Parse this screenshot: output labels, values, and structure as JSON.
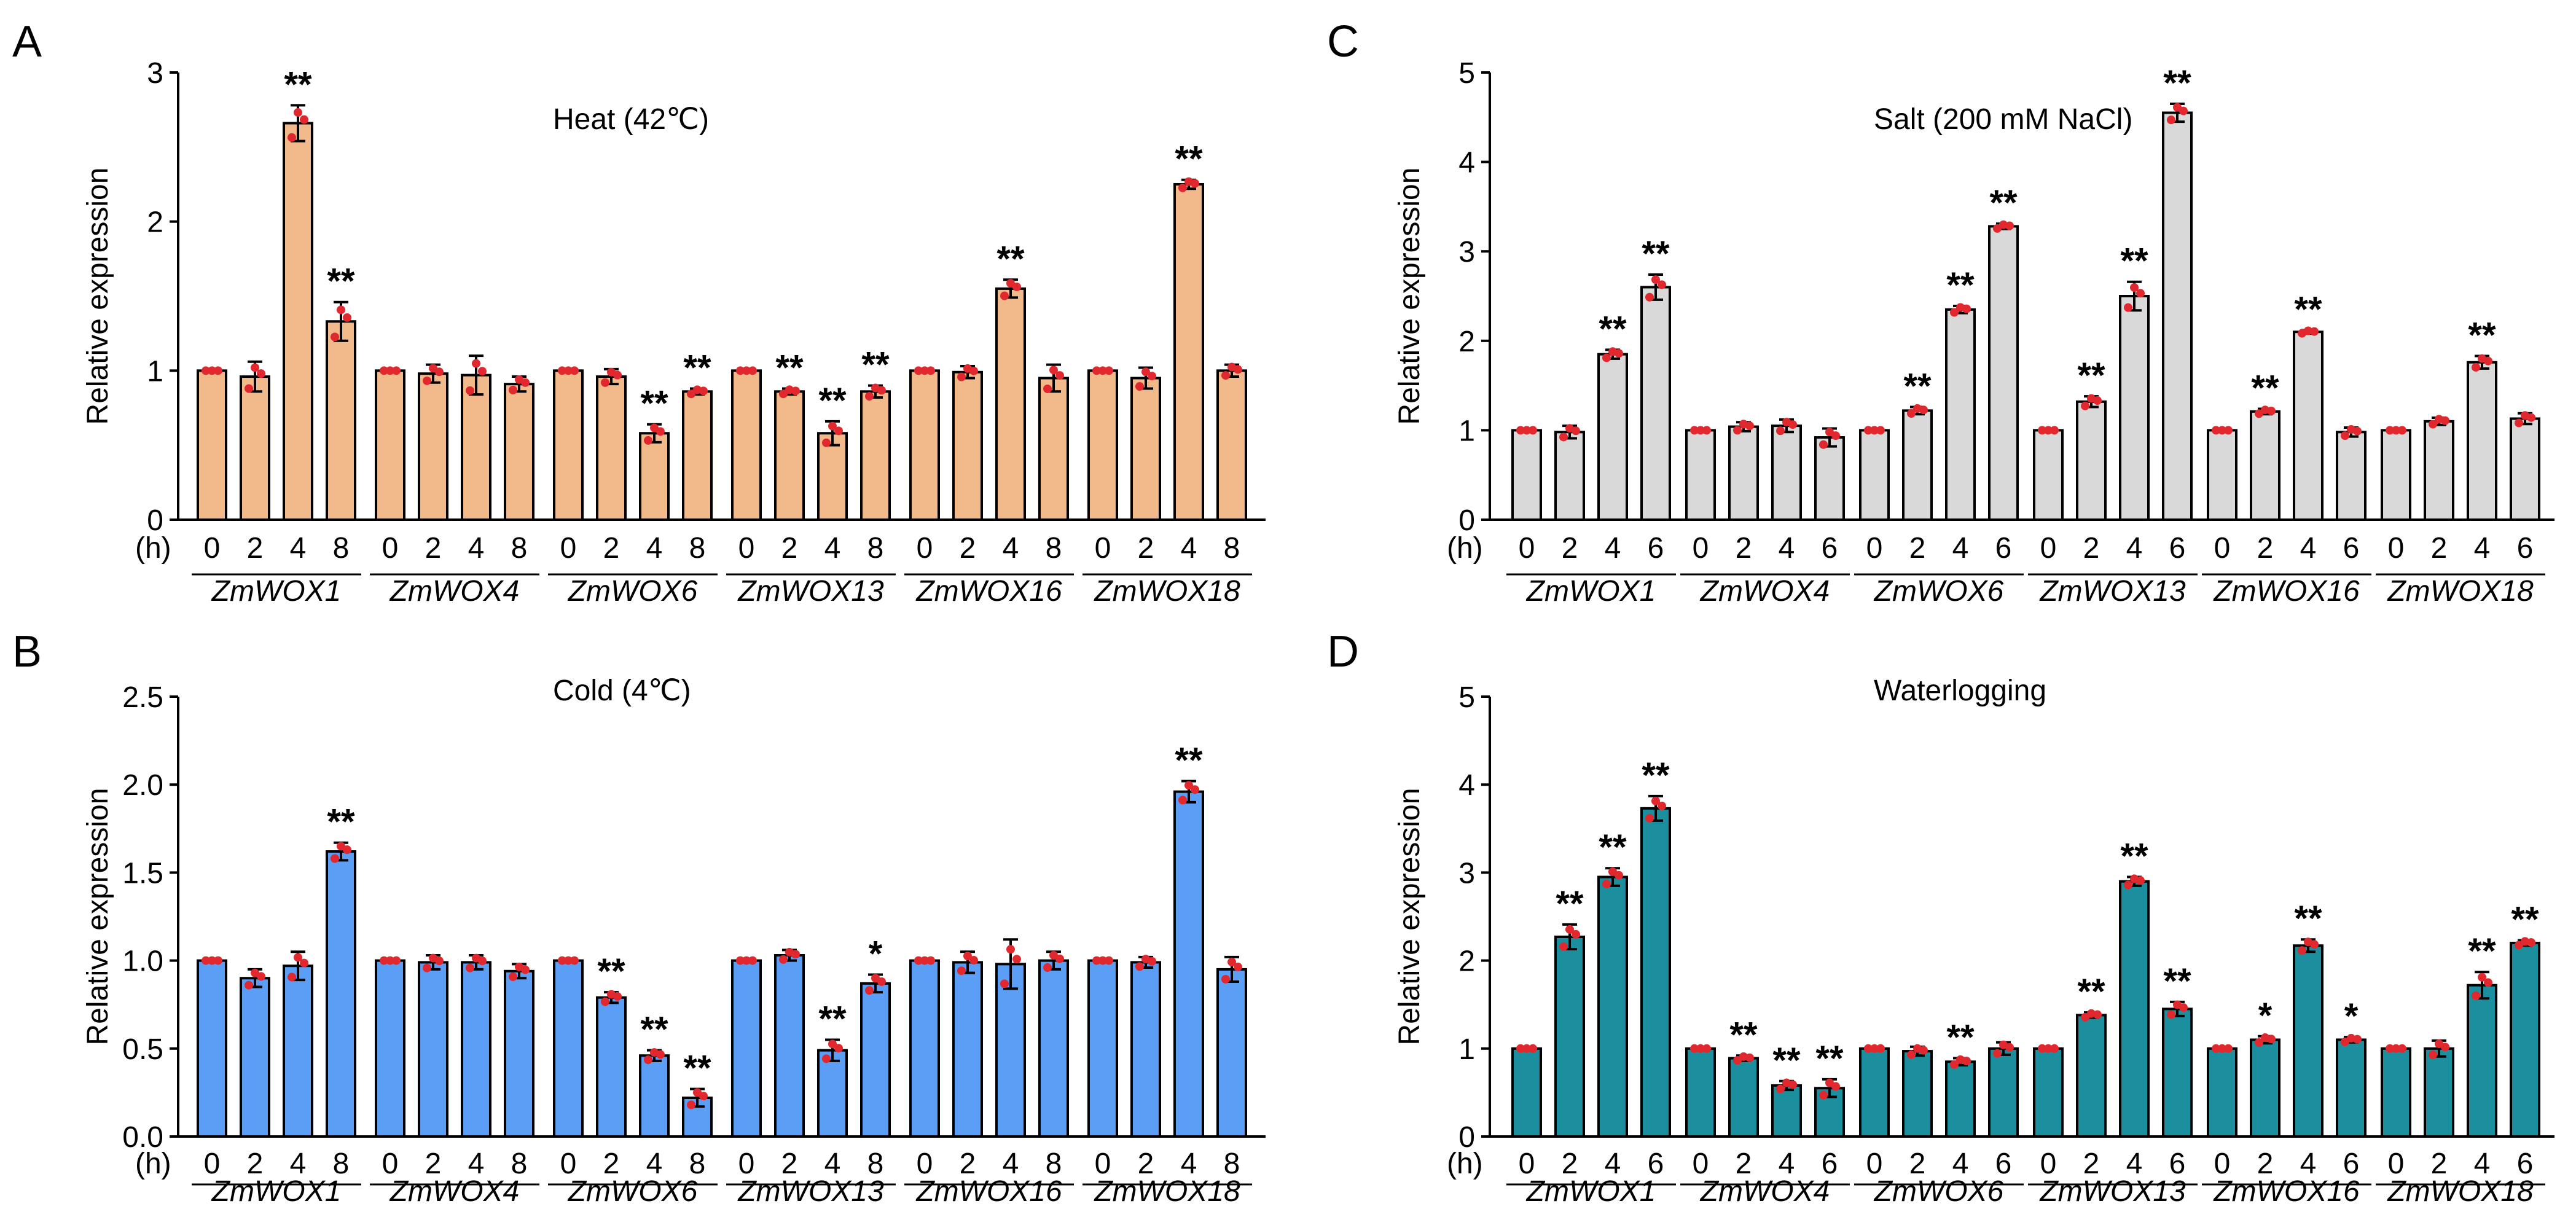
{
  "chart_data": [
    {
      "panel": "A",
      "type": "bar",
      "title": "Heat (42℃)",
      "ylabel": "Relative expression",
      "xunit": "(h)",
      "ylim": [
        0,
        3
      ],
      "yticks": [
        "0",
        "1",
        "2",
        "3"
      ],
      "time_labels": [
        "0",
        "2",
        "4",
        "8"
      ],
      "genes": [
        "ZmWOX1",
        "ZmWOX4",
        "ZmWOX6",
        "ZmWOX13",
        "ZmWOX16",
        "ZmWOX18"
      ],
      "color": "#f2b98a",
      "values": [
        1.0,
        0.96,
        2.66,
        1.33,
        1.0,
        0.98,
        0.97,
        0.91,
        1.0,
        0.96,
        0.58,
        0.86,
        1.0,
        0.86,
        0.58,
        0.86,
        1.0,
        0.99,
        1.55,
        0.95,
        1.0,
        0.95,
        2.25,
        1.0
      ],
      "errors": [
        0.0,
        0.1,
        0.12,
        0.13,
        0.0,
        0.06,
        0.13,
        0.05,
        0.0,
        0.05,
        0.06,
        0.02,
        0.0,
        0.02,
        0.08,
        0.04,
        0.0,
        0.04,
        0.06,
        0.09,
        0.0,
        0.07,
        0.03,
        0.04
      ],
      "sig": [
        "",
        "",
        "**",
        "**",
        "",
        "",
        "",
        "",
        "",
        "",
        "**",
        "**",
        "",
        "**",
        "**",
        "**",
        "",
        "",
        "**",
        "",
        "",
        "",
        "**",
        ""
      ]
    },
    {
      "panel": "B",
      "type": "bar",
      "title": "Cold (4℃)",
      "ylabel": "Relative expression",
      "xunit": "(h)",
      "ylim": [
        0,
        2.5
      ],
      "yticks": [
        "0.0",
        "0.5",
        "1.0",
        "1.5",
        "2.0",
        "2.5"
      ],
      "time_labels": [
        "0",
        "2",
        "4",
        "8"
      ],
      "genes": [
        "ZmWOX1",
        "ZmWOX4",
        "ZmWOX6",
        "ZmWOX13",
        "ZmWOX16",
        "ZmWOX18"
      ],
      "color": "#5b9ef5",
      "values": [
        1.0,
        0.9,
        0.97,
        1.62,
        1.0,
        0.99,
        0.99,
        0.94,
        1.0,
        0.79,
        0.46,
        0.22,
        1.0,
        1.03,
        0.49,
        0.87,
        1.0,
        0.99,
        0.98,
        1.0,
        1.0,
        0.99,
        1.96,
        0.95
      ],
      "errors": [
        0.0,
        0.05,
        0.08,
        0.05,
        0.0,
        0.04,
        0.04,
        0.04,
        0.0,
        0.03,
        0.03,
        0.05,
        0.0,
        0.03,
        0.06,
        0.05,
        0.0,
        0.06,
        0.14,
        0.05,
        0.0,
        0.03,
        0.06,
        0.07
      ],
      "sig": [
        "",
        "",
        "",
        "**",
        "",
        "",
        "",
        "",
        "",
        "**",
        "**",
        "**",
        "",
        "",
        "**",
        "*",
        "",
        "",
        "",
        "",
        "",
        "",
        "**",
        ""
      ]
    },
    {
      "panel": "C",
      "type": "bar",
      "title": "Salt (200 mM NaCl)",
      "ylabel": "Relative expression",
      "xunit": "(h)",
      "ylim": [
        0,
        5
      ],
      "yticks": [
        "0",
        "1",
        "2",
        "3",
        "4",
        "5"
      ],
      "time_labels": [
        "0",
        "2",
        "4",
        "6"
      ],
      "genes": [
        "ZmWOX1",
        "ZmWOX4",
        "ZmWOX6",
        "ZmWOX13",
        "ZmWOX16",
        "ZmWOX18"
      ],
      "color": "#d9d9d9",
      "values": [
        1.0,
        0.98,
        1.85,
        2.6,
        1.0,
        1.04,
        1.05,
        0.92,
        1.0,
        1.22,
        2.35,
        3.28,
        1.0,
        1.32,
        2.5,
        4.55,
        1.0,
        1.21,
        2.1,
        0.98,
        1.0,
        1.1,
        1.76,
        1.13
      ],
      "errors": [
        0.0,
        0.07,
        0.05,
        0.14,
        0.0,
        0.05,
        0.07,
        0.1,
        0.0,
        0.04,
        0.04,
        0.03,
        0.0,
        0.06,
        0.16,
        0.1,
        0.0,
        0.03,
        0.02,
        0.05,
        0.0,
        0.04,
        0.07,
        0.06
      ],
      "sig": [
        "",
        "",
        "**",
        "**",
        "",
        "",
        "",
        "",
        "",
        "**",
        "**",
        "**",
        "",
        "**",
        "**",
        "**",
        "",
        "**",
        "**",
        "",
        "",
        "",
        "**",
        ""
      ]
    },
    {
      "panel": "D",
      "type": "bar",
      "title": "Waterlogging",
      "ylabel": "Relative expression",
      "xunit": "(h)",
      "ylim": [
        0,
        5
      ],
      "yticks": [
        "0",
        "1",
        "2",
        "3",
        "4",
        "5"
      ],
      "time_labels": [
        "0",
        "2",
        "4",
        "6"
      ],
      "genes": [
        "ZmWOX1",
        "ZmWOX4",
        "ZmWOX6",
        "ZmWOX13",
        "ZmWOX16",
        "ZmWOX18"
      ],
      "color": "#1b8f9e",
      "values": [
        1.0,
        2.27,
        2.95,
        3.73,
        1.0,
        0.89,
        0.58,
        0.55,
        1.0,
        0.97,
        0.85,
        1.0,
        1.0,
        1.38,
        2.9,
        1.45,
        1.0,
        1.1,
        2.17,
        1.1,
        1.0,
        1.0,
        1.72,
        2.2
      ],
      "errors": [
        0.0,
        0.14,
        0.1,
        0.14,
        0.0,
        0.03,
        0.05,
        0.1,
        0.0,
        0.05,
        0.04,
        0.07,
        0.0,
        0.03,
        0.05,
        0.08,
        0.0,
        0.04,
        0.07,
        0.03,
        0.0,
        0.09,
        0.15,
        0.03
      ],
      "sig": [
        "",
        "**",
        "**",
        "**",
        "",
        "**",
        "**",
        "**",
        "",
        "",
        "**",
        "",
        "",
        "**",
        "**",
        "**",
        "",
        "*",
        "**",
        "*",
        "",
        "",
        "**",
        "**"
      ]
    }
  ]
}
